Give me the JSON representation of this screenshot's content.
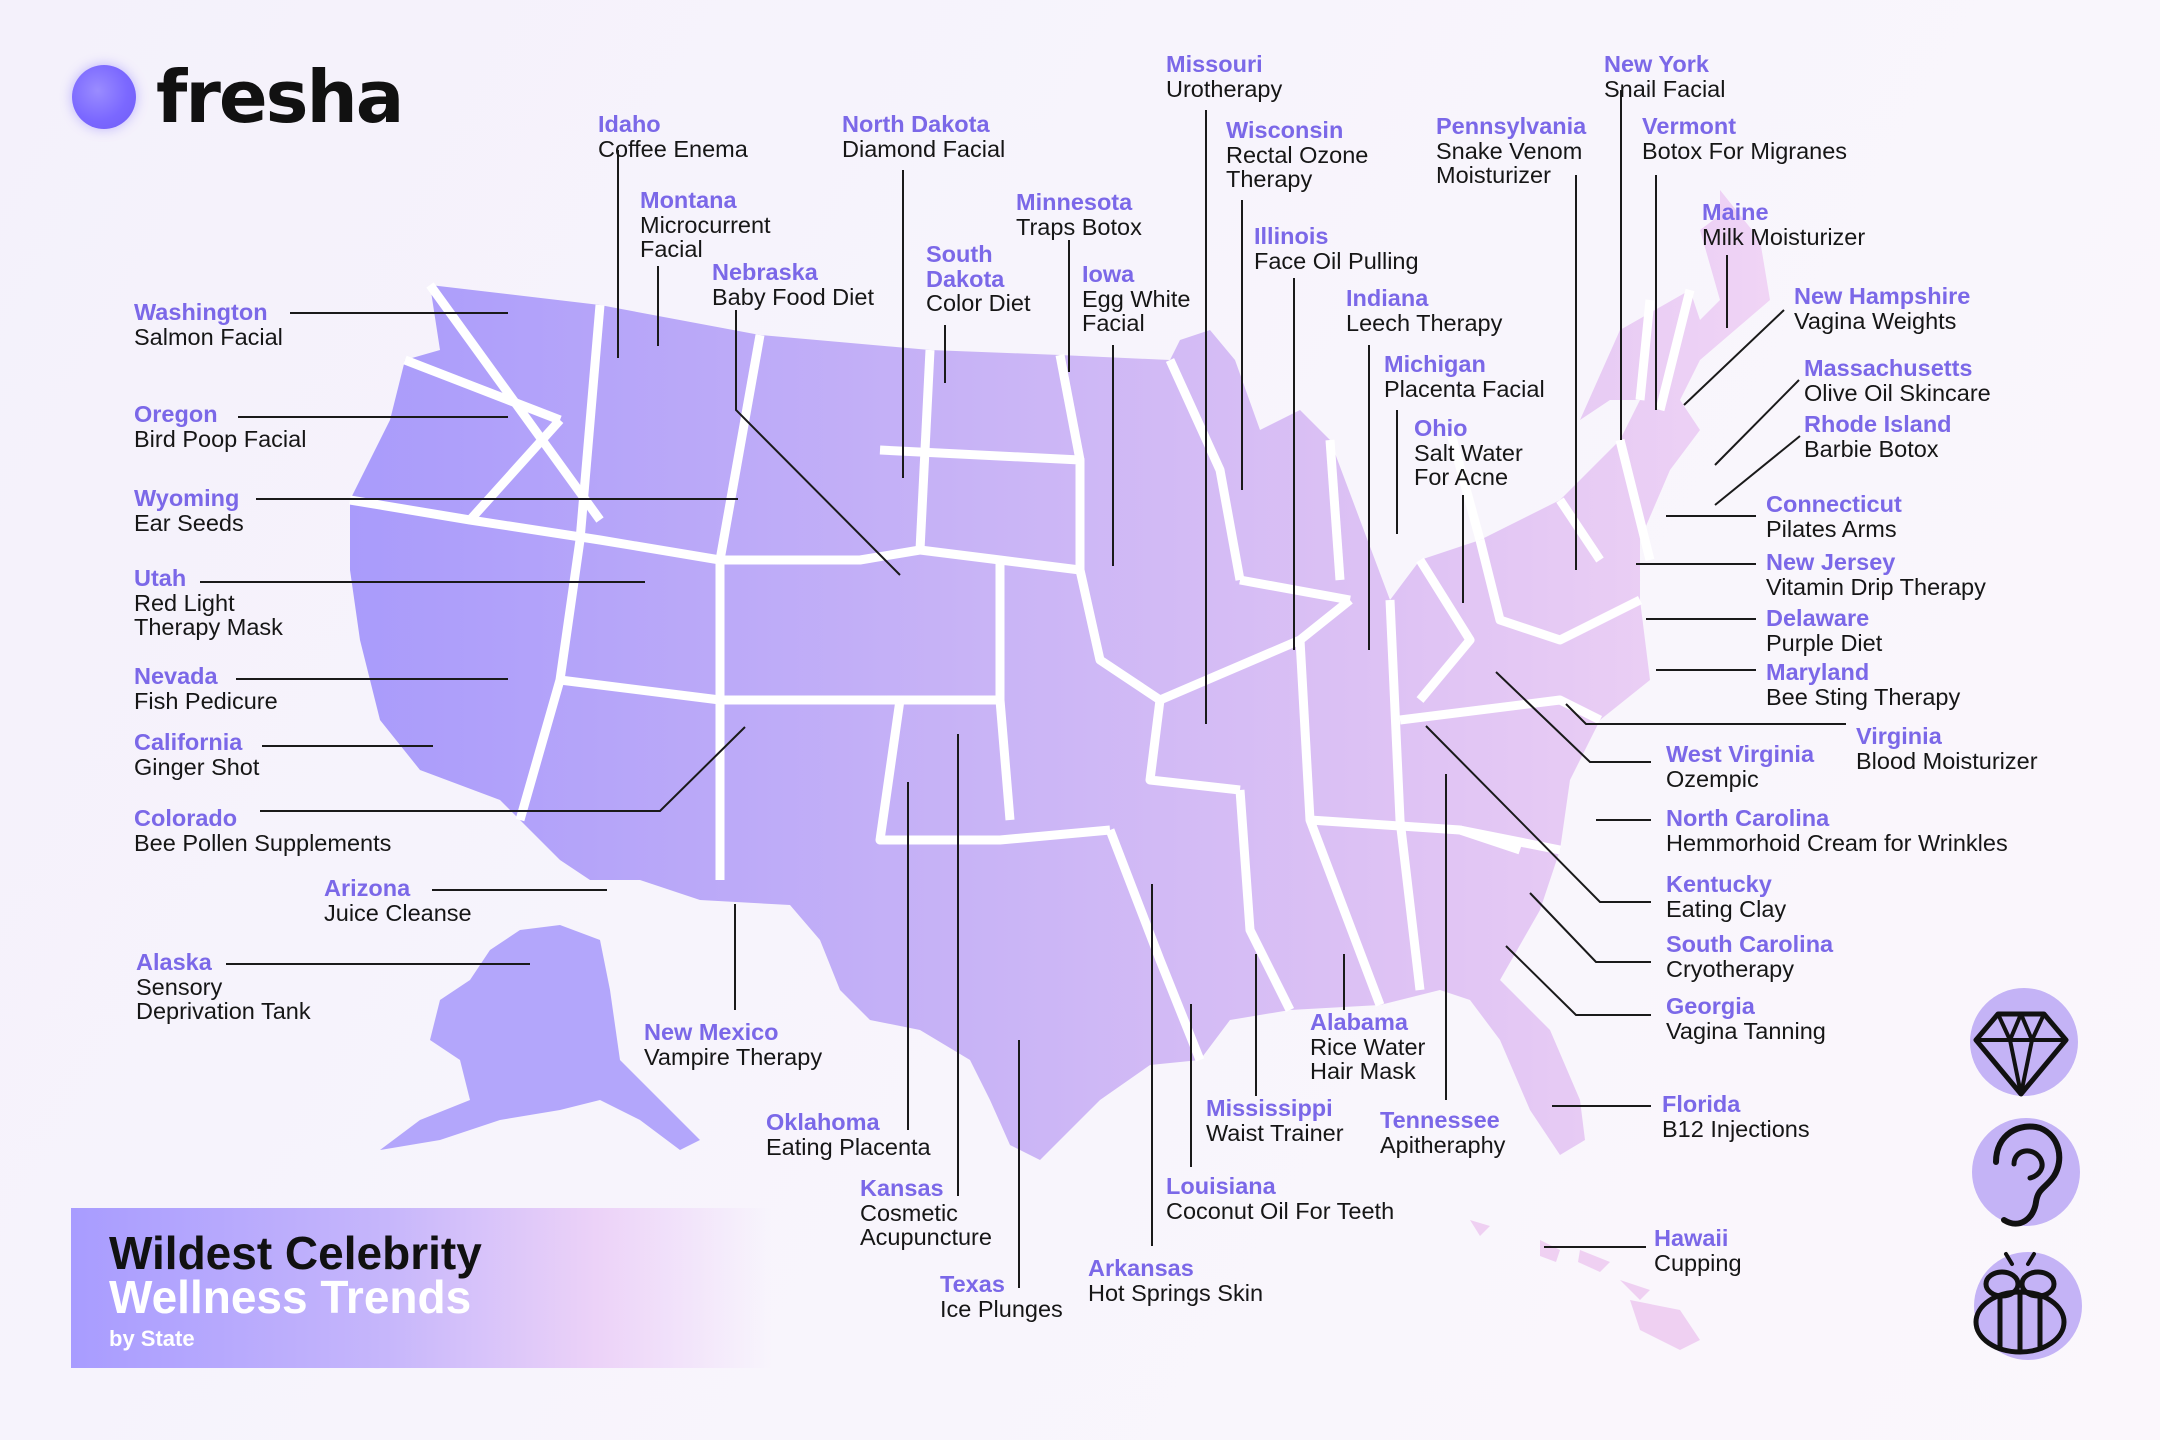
{
  "brand": {
    "name": "fresha",
    "color": "#7B68E8"
  },
  "title": {
    "line1": "Wildest Celebrity",
    "line2": "Wellness Trends",
    "sub": "by State"
  },
  "icons": [
    "diamond-icon",
    "ear-icon",
    "bee-icon"
  ],
  "labels": [
    {
      "id": "washington",
      "state": "Washington",
      "trend": [
        "Salmon Facial"
      ]
    },
    {
      "id": "oregon",
      "state": "Oregon",
      "trend": [
        "Bird Poop Facial"
      ]
    },
    {
      "id": "wyoming",
      "state": "Wyoming",
      "trend": [
        "Ear Seeds"
      ]
    },
    {
      "id": "utah",
      "state": "Utah",
      "trend": [
        "Red Light",
        "Therapy Mask"
      ]
    },
    {
      "id": "nevada",
      "state": "Nevada",
      "trend": [
        "Fish Pedicure"
      ]
    },
    {
      "id": "california",
      "state": "California",
      "trend": [
        "Ginger Shot"
      ]
    },
    {
      "id": "colorado",
      "state": "Colorado",
      "trend": [
        "Bee Pollen Supplements"
      ]
    },
    {
      "id": "arizona",
      "state": "Arizona",
      "trend": [
        "Juice Cleanse"
      ]
    },
    {
      "id": "alaska",
      "state": "Alaska",
      "trend": [
        "Sensory",
        "Deprivation Tank"
      ]
    },
    {
      "id": "idaho",
      "state": "Idaho",
      "trend": [
        "Coffee Enema"
      ]
    },
    {
      "id": "montana",
      "state": "Montana",
      "trend": [
        "Microcurrent",
        "Facial"
      ]
    },
    {
      "id": "nebraska",
      "state": "Nebraska",
      "trend": [
        "Baby Food Diet"
      ]
    },
    {
      "id": "north-dakota",
      "state": "North Dakota",
      "trend": [
        "Diamond Facial"
      ]
    },
    {
      "id": "south-dakota",
      "state": "South\nDakota",
      "trend": [
        "Color Diet"
      ]
    },
    {
      "id": "minnesota",
      "state": "Minnesota",
      "trend": [
        "Traps Botox"
      ]
    },
    {
      "id": "iowa",
      "state": "Iowa",
      "trend": [
        "Egg White",
        "Facial"
      ]
    },
    {
      "id": "missouri",
      "state": "Missouri",
      "trend": [
        "Urotherapy"
      ]
    },
    {
      "id": "wisconsin",
      "state": "Wisconsin",
      "trend": [
        "Rectal Ozone",
        "Therapy"
      ]
    },
    {
      "id": "illinois",
      "state": "Illinois",
      "trend": [
        "Face Oil Pulling"
      ]
    },
    {
      "id": "indiana",
      "state": "Indiana",
      "trend": [
        "Leech Therapy"
      ]
    },
    {
      "id": "michigan",
      "state": "Michigan",
      "trend": [
        "Placenta Facial"
      ]
    },
    {
      "id": "ohio",
      "state": "Ohio",
      "trend": [
        "Salt Water",
        "For Acne"
      ]
    },
    {
      "id": "pennsylvania",
      "state": "Pennsylvania",
      "trend": [
        "Snake Venom",
        "Moisturizer"
      ]
    },
    {
      "id": "new-york",
      "state": "New York",
      "trend": [
        "Snail Facial"
      ]
    },
    {
      "id": "vermont",
      "state": "Vermont",
      "trend": [
        "Botox For Migranes"
      ]
    },
    {
      "id": "maine",
      "state": "Maine",
      "trend": [
        "Milk Moisturizer"
      ]
    },
    {
      "id": "new-hampshire",
      "state": "New Hampshire",
      "trend": [
        "Vagina Weights"
      ]
    },
    {
      "id": "massachusetts",
      "state": "Massachusetts",
      "trend": [
        "Olive Oil Skincare"
      ]
    },
    {
      "id": "rhode-island",
      "state": "Rhode Island",
      "trend": [
        "Barbie Botox"
      ]
    },
    {
      "id": "connecticut",
      "state": "Connecticut",
      "trend": [
        "Pilates Arms"
      ]
    },
    {
      "id": "new-jersey",
      "state": "New Jersey",
      "trend": [
        "Vitamin Drip Therapy"
      ]
    },
    {
      "id": "delaware",
      "state": "Delaware",
      "trend": [
        "Purple Diet"
      ]
    },
    {
      "id": "maryland",
      "state": "Maryland",
      "trend": [
        "Bee Sting Therapy"
      ]
    },
    {
      "id": "virginia",
      "state": "Virginia",
      "trend": [
        "Blood Moisturizer"
      ]
    },
    {
      "id": "west-virginia",
      "state": "West Virginia",
      "trend": [
        "Ozempic"
      ]
    },
    {
      "id": "north-carolina",
      "state": "North Carolina",
      "trend": [
        "Hemmorhoid Cream for Wrinkles"
      ]
    },
    {
      "id": "kentucky",
      "state": "Kentucky",
      "trend": [
        "Eating Clay"
      ]
    },
    {
      "id": "south-carolina",
      "state": "South Carolina",
      "trend": [
        "Cryotherapy"
      ]
    },
    {
      "id": "georgia",
      "state": "Georgia",
      "trend": [
        "Vagina Tanning"
      ]
    },
    {
      "id": "florida",
      "state": "Florida",
      "trend": [
        "B12 Injections"
      ]
    },
    {
      "id": "hawaii",
      "state": "Hawaii",
      "trend": [
        "Cupping"
      ]
    },
    {
      "id": "tennessee",
      "state": "Tennessee",
      "trend": [
        "Apitheraphy"
      ]
    },
    {
      "id": "alabama",
      "state": "Alabama",
      "trend": [
        "Rice Water",
        "Hair Mask"
      ]
    },
    {
      "id": "mississippi",
      "state": "Mississippi",
      "trend": [
        "Waist Trainer"
      ]
    },
    {
      "id": "louisiana",
      "state": "Louisiana",
      "trend": [
        "Coconut Oil For Teeth"
      ]
    },
    {
      "id": "arkansas",
      "state": "Arkansas",
      "trend": [
        "Hot Springs Skin"
      ]
    },
    {
      "id": "texas",
      "state": "Texas",
      "trend": [
        "Ice Plunges"
      ]
    },
    {
      "id": "kansas",
      "state": "Kansas",
      "trend": [
        "Cosmetic",
        "Acupuncture"
      ]
    },
    {
      "id": "oklahoma",
      "state": "Oklahoma",
      "trend": [
        "Eating Placenta"
      ]
    },
    {
      "id": "new-mexico",
      "state": "New Mexico",
      "trend": [
        "Vampire Therapy"
      ]
    }
  ]
}
